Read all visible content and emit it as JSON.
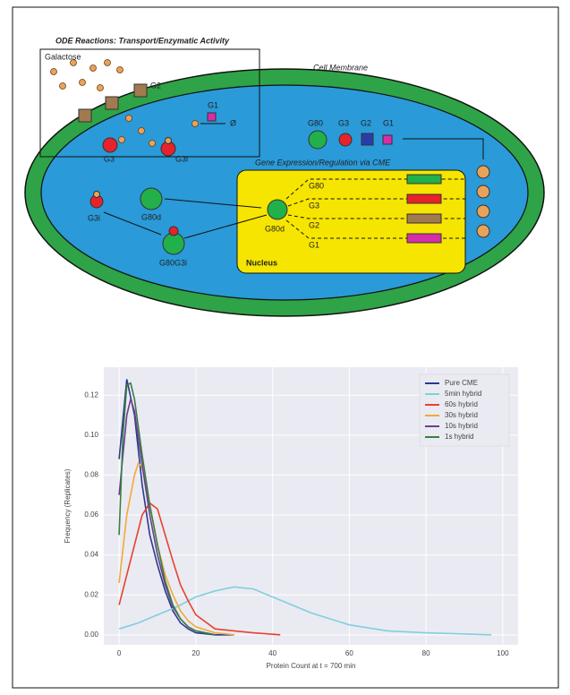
{
  "diagram": {
    "labels": [
      "ODE Reactions: Transport/Enzymatic Activity",
      "Galactose",
      "Cell Membrane",
      "G2",
      "G1",
      "Ø",
      "G3",
      "G3i",
      "G80",
      "G3",
      "G2",
      "G1",
      "Gene Expression/Regulation via CME",
      "G3i",
      "G80d",
      "G80G3i",
      "G80d",
      "Nucleus",
      "G80",
      "G3",
      "G2",
      "G1"
    ]
  },
  "chart_data": {
    "type": "line",
    "xlabel": "Protein Count at t = 700 min",
    "ylabel": "Frequency (Replicates)",
    "xlim": [
      -4,
      104
    ],
    "ylim": [
      -0.005,
      0.134
    ],
    "xticks": [
      0,
      20,
      40,
      60,
      80,
      100
    ],
    "yticks": [
      {
        "value": 0,
        "label": "0.00"
      },
      0.02,
      0.04,
      0.06,
      0.08,
      {
        "value": 0.1,
        "label": "0.10"
      },
      0.12
    ],
    "grid": true,
    "legend": "upper right",
    "series": [
      {
        "name": "Pure CME",
        "color": "#2b3a8c",
        "x": [
          0,
          2,
          4,
          6,
          8,
          10,
          12,
          14,
          16,
          18,
          20,
          25,
          30
        ],
        "values": [
          0.088,
          0.128,
          0.11,
          0.075,
          0.05,
          0.035,
          0.022,
          0.012,
          0.006,
          0.003,
          0.001,
          0,
          0
        ]
      },
      {
        "name": "5min hybrid",
        "color": "#7fd0de",
        "x": [
          0,
          5,
          10,
          15,
          20,
          25,
          30,
          35,
          40,
          45,
          50,
          55,
          60,
          70,
          80,
          97
        ],
        "values": [
          0.003,
          0.006,
          0.01,
          0.014,
          0.019,
          0.022,
          0.024,
          0.023,
          0.019,
          0.015,
          0.011,
          0.008,
          0.005,
          0.002,
          0.001,
          0
        ]
      },
      {
        "name": "60s hybrid",
        "color": "#e8412c",
        "x": [
          0,
          2,
          4,
          6,
          8,
          10,
          12,
          14,
          16,
          18,
          20,
          25,
          30,
          35,
          42
        ],
        "values": [
          0.015,
          0.03,
          0.045,
          0.06,
          0.066,
          0.063,
          0.05,
          0.037,
          0.025,
          0.017,
          0.01,
          0.003,
          0.002,
          0.001,
          0
        ]
      },
      {
        "name": "30s hybrid",
        "color": "#f0a93a",
        "x": [
          0,
          2,
          4,
          5,
          6,
          8,
          10,
          12,
          14,
          16,
          18,
          20,
          25,
          30
        ],
        "values": [
          0.026,
          0.06,
          0.08,
          0.086,
          0.084,
          0.065,
          0.045,
          0.03,
          0.02,
          0.012,
          0.007,
          0.004,
          0.001,
          0
        ]
      },
      {
        "name": "10s hybrid",
        "color": "#6b3f8f",
        "x": [
          0,
          2,
          3,
          4,
          6,
          8,
          10,
          12,
          14,
          16,
          18,
          20,
          25
        ],
        "values": [
          0.07,
          0.11,
          0.118,
          0.112,
          0.085,
          0.06,
          0.04,
          0.025,
          0.014,
          0.008,
          0.004,
          0.002,
          0
        ]
      },
      {
        "name": "1s hybrid",
        "color": "#3a7d44",
        "x": [
          0,
          1,
          2,
          3,
          4,
          6,
          8,
          10,
          12,
          14,
          16,
          18,
          20,
          25
        ],
        "values": [
          0.05,
          0.1,
          0.125,
          0.126,
          0.118,
          0.09,
          0.065,
          0.045,
          0.027,
          0.015,
          0.008,
          0.004,
          0.002,
          0
        ]
      }
    ]
  }
}
